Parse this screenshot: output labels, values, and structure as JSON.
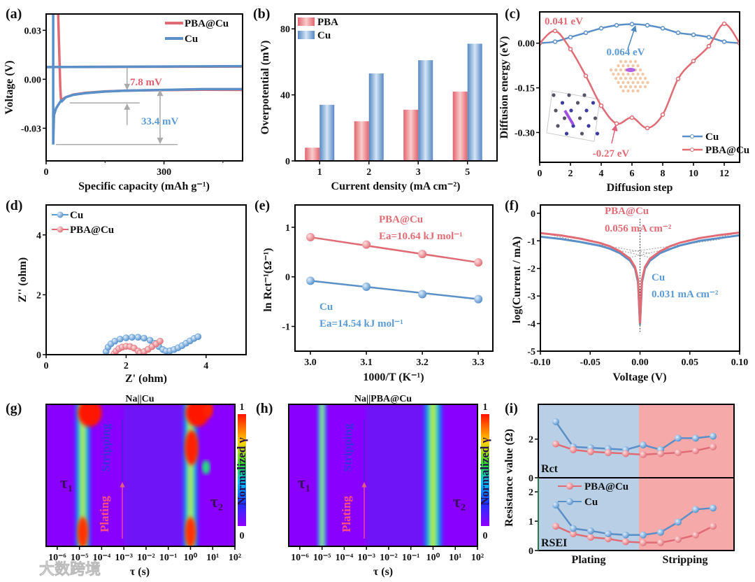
{
  "watermark": "大数跨境",
  "chart_data": [
    {
      "id": "a",
      "panel": "(a)",
      "type": "line",
      "xlabel": "Specific capacity (mAh g⁻¹)",
      "ylabel": "Voltage (V)",
      "xlim": [
        0,
        500
      ],
      "ylim": [
        -0.05,
        0.04
      ],
      "xticks": [
        0,
        300
      ],
      "xticklabels": [
        "0",
        "300"
      ],
      "yticks": [
        -0.03,
        0,
        0.03
      ],
      "yticklabels": [
        "-0.03",
        "0.00",
        "0.03"
      ],
      "legend_position": "top-right",
      "series": [
        {
          "name": "PBA@Cu",
          "color": "#e06b74",
          "segments": [
            {
              "x": [
                0,
                500
              ],
              "y": [
                0.0075,
                0.0078
              ]
            },
            {
              "x": [
                30,
                33,
                36,
                38,
                40,
                50,
                70,
                100,
                150,
                200,
                300,
                400,
                500
              ],
              "y": [
                0.045,
                0.02,
                -0.005,
                -0.013,
                -0.0125,
                -0.011,
                -0.0093,
                -0.0083,
                -0.0074,
                -0.007,
                -0.0066,
                -0.0064,
                -0.0065
              ]
            }
          ]
        },
        {
          "name": "Cu",
          "color": "#5b8fc7",
          "segments": [
            {
              "x": [
                0,
                500
              ],
              "y": [
                0.0075,
                0.008
              ]
            },
            {
              "x": [
                18,
                18,
                19,
                20,
                25,
                30,
                38,
                40,
                42,
                50,
                70,
                100,
                150,
                200,
                300,
                400,
                500
              ],
              "y": [
                0.045,
                -0.04,
                -0.03,
                -0.022,
                -0.018,
                -0.016,
                -0.013,
                -0.0135,
                -0.013,
                -0.011,
                -0.0095,
                -0.0085,
                -0.0075,
                -0.007,
                -0.0065,
                -0.006,
                -0.006
              ]
            }
          ]
        }
      ],
      "annotations": [
        "7.8 mV",
        "33.4 mV"
      ]
    },
    {
      "id": "b",
      "panel": "(b)",
      "type": "bar",
      "xlabel": "Current density (mA cm⁻²)",
      "ylabel": "Overpotential (mV)",
      "categories": [
        "1",
        "2",
        "3",
        "5"
      ],
      "ylim": [
        0,
        89
      ],
      "yticks": [
        0,
        40,
        80
      ],
      "yticklabels": [
        "0",
        "40",
        "80"
      ],
      "legend_position": "top-left",
      "series": [
        {
          "name": "PBA",
          "color": "#e86a72",
          "values": [
            8,
            24,
            31,
            42
          ]
        },
        {
          "name": "Cu",
          "color": "#5b8fc7",
          "values": [
            34,
            53,
            61,
            71
          ]
        }
      ]
    },
    {
      "id": "c",
      "panel": "(c)",
      "type": "line",
      "xlabel": "Diffusion step",
      "ylabel": "Diffusion energy (eV)",
      "xlim": [
        0,
        13
      ],
      "ylim": [
        -0.4,
        0.105
      ],
      "xticks": [
        0,
        2,
        4,
        6,
        8,
        10,
        12
      ],
      "xticklabels": [
        "0",
        "2",
        "4",
        "6",
        "8",
        "10",
        "12"
      ],
      "yticks": [
        -0.3,
        -0.15,
        0
      ],
      "yticklabels": [
        "-0.30",
        "-0.15",
        "0.00"
      ],
      "legend_position": "bottom-right",
      "series": [
        {
          "name": "Cu",
          "color": "#5b8fc7",
          "x": [
            0,
            1,
            2,
            3,
            4,
            5,
            6,
            7,
            8,
            9,
            10,
            11,
            12,
            13
          ],
          "y": [
            0,
            0.005,
            0.02,
            0.035,
            0.05,
            0.06,
            0.064,
            0.06,
            0.05,
            0.035,
            0.028,
            0.02,
            0.005,
            0
          ]
        },
        {
          "name": "PBA@Cu",
          "color": "#e06b74",
          "x": [
            0,
            1,
            2,
            3,
            4,
            5,
            6,
            7,
            8,
            9,
            10,
            11,
            12,
            13
          ],
          "y": [
            0,
            0.041,
            -0.02,
            -0.11,
            -0.21,
            -0.27,
            -0.25,
            -0.285,
            -0.24,
            -0.12,
            -0.06,
            -0.01,
            0.065,
            0
          ]
        }
      ],
      "annotations": [
        "0.041 eV",
        "0.064 eV",
        "-0.27 eV"
      ]
    },
    {
      "id": "d",
      "panel": "(d)",
      "type": "scatter",
      "xlabel": "Z' (ohm)",
      "ylabel": "Z'' (ohm)",
      "xlim": [
        0,
        5
      ],
      "ylim": [
        0,
        5
      ],
      "xticks": [
        0,
        2,
        4
      ],
      "xticklabels": [
        "0",
        "2",
        "4"
      ],
      "yticks": [
        0,
        2,
        4
      ],
      "yticklabels": [
        "0",
        "2",
        "4"
      ],
      "legend_position": "top-left",
      "series": [
        {
          "name": "Cu",
          "color": "#5b9bd5",
          "x": [
            1.5,
            1.55,
            1.62,
            1.72,
            1.85,
            2.0,
            2.15,
            2.3,
            2.45,
            2.6,
            2.72,
            2.82,
            2.92,
            3.0,
            3.1,
            3.2,
            3.3,
            3.4,
            3.5,
            3.6,
            3.7,
            3.8
          ],
          "y": [
            0.1,
            0.25,
            0.36,
            0.45,
            0.52,
            0.56,
            0.58,
            0.58,
            0.55,
            0.48,
            0.38,
            0.27,
            0.17,
            0.12,
            0.13,
            0.17,
            0.23,
            0.3,
            0.38,
            0.46,
            0.54,
            0.6
          ]
        },
        {
          "name": "PBA@Cu",
          "color": "#e06b74",
          "x": [
            1.7,
            1.75,
            1.82,
            1.9,
            2.0,
            2.1,
            2.2,
            2.3,
            2.35,
            2.45,
            2.55,
            2.65,
            2.75,
            2.85
          ],
          "y": [
            0.03,
            0.12,
            0.2,
            0.25,
            0.28,
            0.27,
            0.22,
            0.12,
            0.05,
            0.1,
            0.18,
            0.27,
            0.36,
            0.45
          ]
        }
      ]
    },
    {
      "id": "e",
      "panel": "(e)",
      "type": "scatter",
      "xlabel": "1000/T (K⁻¹)",
      "ylabel": "ln Rct⁻¹(Ω⁻¹)",
      "xlim": [
        2.9725,
        3.326
      ],
      "ylim": [
        -1.5,
        1.45
      ],
      "xticks": [
        3.0,
        3.1,
        3.2,
        3.3
      ],
      "xticklabels": [
        "3.0",
        "3.1",
        "3.2",
        "3.3"
      ],
      "yticks": [
        -1,
        0,
        1
      ],
      "yticklabels": [
        "-1",
        "0",
        "1"
      ],
      "series": [
        {
          "name": "PBA@Cu",
          "color": "#e06b74",
          "x": [
            3.0,
            3.1,
            3.2,
            3.3
          ],
          "y": [
            0.8,
            0.65,
            0.46,
            0.29
          ]
        },
        {
          "name": "Cu",
          "color": "#5b8fc7",
          "x": [
            3.0,
            3.1,
            3.2,
            3.3
          ],
          "y": [
            -0.08,
            -0.2,
            -0.35,
            -0.45
          ]
        }
      ],
      "annotations": [
        "PBA@Cu",
        "Ea=10.64 kJ mol⁻¹",
        "Cu",
        "Ea=14.54 kJ mol⁻¹"
      ]
    },
    {
      "id": "f",
      "panel": "(f)",
      "type": "line",
      "xlabel": "Voltage (V)",
      "ylabel": "log(Current / mA)",
      "xlim": [
        -0.1,
        0.1
      ],
      "ylim": [
        -5,
        0.3
      ],
      "xticks": [
        -0.1,
        -0.05,
        0,
        0.05,
        0.1
      ],
      "xticklabels": [
        "-0.10",
        "-0.05",
        "0.00",
        "0.05",
        "0.10"
      ],
      "yticks": [
        -5,
        -4,
        -3,
        -2,
        -1,
        0
      ],
      "yticklabels": [
        "-5",
        "-4",
        "-3",
        "-2",
        "-1",
        "0"
      ],
      "series": [
        {
          "name": "Cu",
          "color": "#5b8fc7",
          "x": [
            -0.1,
            -0.08,
            -0.06,
            -0.04,
            -0.03,
            -0.02,
            -0.01,
            -0.005,
            -0.002,
            0,
            0.002,
            0.005,
            0.01,
            0.02,
            0.03,
            0.04,
            0.06,
            0.08,
            0.1
          ],
          "y": [
            -0.85,
            -0.93,
            -1.04,
            -1.18,
            -1.29,
            -1.45,
            -1.72,
            -2.0,
            -2.5,
            -4.05,
            -2.5,
            -2.0,
            -1.72,
            -1.45,
            -1.3,
            -1.17,
            -1.0,
            -0.9,
            -0.8
          ]
        },
        {
          "name": "PBA@Cu",
          "color": "#e06b74",
          "x": [
            -0.1,
            -0.08,
            -0.06,
            -0.04,
            -0.03,
            -0.02,
            -0.01,
            -0.005,
            -0.002,
            0,
            0.002,
            0.005,
            0.01,
            0.02,
            0.03,
            0.04,
            0.06,
            0.08,
            0.1
          ],
          "y": [
            -0.72,
            -0.8,
            -0.92,
            -1.08,
            -1.2,
            -1.38,
            -1.65,
            -1.95,
            -2.4,
            -4.0,
            -2.4,
            -1.95,
            -1.65,
            -1.38,
            -1.2,
            -1.07,
            -0.9,
            -0.79,
            -0.7
          ]
        }
      ],
      "annotations": [
        "PBA@Cu",
        "0.056 mA cm⁻²",
        "Cu",
        "0.031 mA cm⁻²"
      ]
    },
    {
      "id": "g",
      "panel": "(g)",
      "type": "heatmap",
      "title": "Na||Cu",
      "xlabel": "τ (s)",
      "xlim": [
        -6.5,
        2
      ],
      "xticks": [
        -6,
        -5,
        -4,
        -3,
        -2,
        -1,
        0,
        1,
        2
      ],
      "xticklabels": [
        "10⁻⁶",
        "10⁻⁵",
        "10⁻⁴",
        "10⁻³",
        "10⁻²",
        "10⁻¹",
        "10⁰",
        "10¹",
        "10²"
      ],
      "colorbar": {
        "label": "Normalized γ",
        "max_label": "1",
        "min_label": "0"
      },
      "peaks": [
        {
          "log_tau": -4.85,
          "width_decades": 0.9,
          "hotspots": [
            "top",
            "bottom"
          ]
        },
        {
          "log_tau": 0.0,
          "width_decades": 0.9,
          "hotspots": [
            "top",
            "bottom"
          ]
        }
      ],
      "annotations": [
        "τ₁",
        "τ₂",
        "Stripping",
        "Plating"
      ]
    },
    {
      "id": "h",
      "panel": "(h)",
      "type": "heatmap",
      "title": "Na||PBA@Cu",
      "xlabel": "τ (s)",
      "xlim": [
        -6.5,
        2
      ],
      "xticks": [
        -6,
        -5,
        -4,
        -3,
        -2,
        -1,
        0,
        1,
        2
      ],
      "xticklabels": [
        "10⁻⁶",
        "10⁻⁵",
        "10⁻⁴",
        "10⁻³",
        "10⁻²",
        "10⁻¹",
        "10⁰",
        "10¹",
        "10²"
      ],
      "colorbar": {
        "label": "Normalized γ",
        "max_label": "1",
        "min_label": "0"
      },
      "peaks": [
        {
          "log_tau": -5.0,
          "width_decades": 0.5,
          "hotspots": []
        },
        {
          "log_tau": 0.0,
          "width_decades": 1.1,
          "hotspots": []
        }
      ],
      "annotations": [
        "τ₁",
        "τ₂",
        "Stripping",
        "Plating"
      ]
    },
    {
      "id": "i",
      "panel": "(i)",
      "type": "line",
      "ylabel": "Resistance value (Ω)",
      "phases": [
        "Plating",
        "Stripping"
      ],
      "phase_colors": {
        "Plating": "#b9cfe6",
        "Stripping": "#f5aaa9"
      },
      "legend_position": "top-left (lower subplot)",
      "top": {
        "label": "Rct",
        "ylim": [
          0,
          3.8
        ],
        "yticks": [
          0,
          2
        ],
        "yticklabels": [
          "0",
          "2"
        ],
        "series": [
          {
            "name": "Cu",
            "color": "#5b8fc7",
            "values": [
              2.9,
              1.6,
              1.55,
              1.5,
              1.45,
              1.7,
              1.45,
              2.05,
              2.05,
              2.15
            ]
          },
          {
            "name": "PBA@Cu",
            "color": "#e06b74",
            "values": [
              1.75,
              1.45,
              1.35,
              1.3,
              1.25,
              1.2,
              1.25,
              1.3,
              1.4,
              1.6
            ]
          }
        ]
      },
      "bottom": {
        "label": "RSEI",
        "ylim": [
          0,
          2.48
        ],
        "yticks": [
          0,
          1,
          2
        ],
        "yticklabels": [
          "0",
          "1",
          "2"
        ],
        "series": [
          {
            "name": "PBA@Cu",
            "color": "#e06b74",
            "values": [
              0.83,
              0.57,
              0.45,
              0.4,
              0.3,
              0.27,
              0.27,
              0.38,
              0.53,
              0.83
            ]
          },
          {
            "name": "Cu",
            "color": "#5b8fc7",
            "values": [
              1.55,
              0.75,
              0.67,
              0.57,
              0.53,
              0.53,
              0.62,
              0.97,
              1.4,
              1.45
            ]
          }
        ]
      }
    }
  ]
}
